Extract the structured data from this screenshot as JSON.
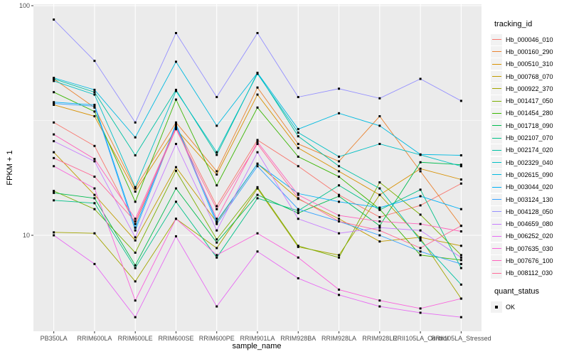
{
  "figure": {
    "y_axis_title": "FPKM + 1",
    "x_axis_title": "sample_name",
    "y_tick_labels": [
      "100",
      "10"
    ]
  },
  "legend": {
    "tracking_title": "tracking_id",
    "quant_title": "quant_status",
    "quant_items": [
      {
        "label": "OK",
        "marker": "black-square"
      }
    ]
  },
  "colors": {
    "panel_bg": "#EBEBEB",
    "grid": "#FFFFFF",
    "tick_text": "#4D4D4D",
    "text": "#000000",
    "point": "#000000",
    "legend_key_bg": "#F2F2F2"
  },
  "chart_data": {
    "type": "line",
    "title": "",
    "xlabel": "sample_name",
    "ylabel": "FPKM + 1",
    "y_scale": "log10",
    "ylim": [
      3.8,
      102
    ],
    "y_major_ticks": [
      100,
      10
    ],
    "y_minor_gridlines": [
      31.62
    ],
    "grid": true,
    "legend_position": "right",
    "point_marker": "black-square",
    "categories": [
      "PB350LA",
      "RRIM600LA",
      "RRIM600LE",
      "RRIM600SE",
      "RRIM600PE",
      "RRIM901LA",
      "RRIM928BA",
      "RRIM928LA",
      "RRIM928LE",
      "RRII105LA_Control",
      "RRII105LA_Stressed"
    ],
    "series": [
      {
        "name": "Hb_000046_010",
        "color": "#F8766D",
        "values": [
          31,
          24.5,
          11.2,
          30,
          13.4,
          26,
          20,
          15,
          12,
          13.5,
          16.8
        ]
      },
      {
        "name": "Hb_000160_290",
        "color": "#EA8331",
        "values": [
          48,
          36,
          16,
          31,
          19,
          44,
          25,
          21,
          33,
          19,
          11
        ]
      },
      {
        "name": "Hb_000510_310",
        "color": "#D89000",
        "values": [
          37,
          33,
          15.5,
          29,
          18.4,
          41,
          24,
          19,
          15,
          19.5,
          17.5
        ]
      },
      {
        "name": "Hb_000768_070",
        "color": "#C09B00",
        "values": [
          23,
          15,
          9.5,
          19.8,
          11.4,
          20.5,
          14.4,
          11.8,
          9.4,
          9.8,
          9
        ]
      },
      {
        "name": "Hb_000922_370",
        "color": "#A3A500",
        "values": [
          10.3,
          10.2,
          6.3,
          11.8,
          8.8,
          16,
          8.9,
          8.2,
          15,
          9.7,
          5.3
        ]
      },
      {
        "name": "Hb_001417_050",
        "color": "#7CAE00",
        "values": [
          15.6,
          13,
          8.4,
          19.1,
          9.6,
          16.2,
          9,
          8,
          17,
          12.3,
          8.2
        ]
      },
      {
        "name": "Hb_001454_280",
        "color": "#39B600",
        "values": [
          42,
          34.6,
          14,
          39,
          16.5,
          36,
          22,
          18,
          13,
          8.2,
          7.8
        ]
      },
      {
        "name": "Hb_001718_090",
        "color": "#00BB4E",
        "values": [
          15.3,
          14.5,
          7.4,
          16,
          9.3,
          15,
          12.5,
          14.8,
          11,
          20.8,
          20.3
        ]
      },
      {
        "name": "Hb_002107_070",
        "color": "#00C087",
        "values": [
          14.2,
          13.8,
          7.2,
          14,
          8,
          14.5,
          12.8,
          16.5,
          12.9,
          15.8,
          7.2
        ]
      },
      {
        "name": "Hb_002174_020",
        "color": "#00C1A3",
        "values": [
          48,
          42,
          22.3,
          43,
          22.4,
          51,
          27,
          20,
          16,
          9.5,
          6.1
        ]
      },
      {
        "name": "Hb_002329_040",
        "color": "#00BFC4",
        "values": [
          47,
          41,
          16.2,
          42.5,
          23,
          50.5,
          28,
          22,
          25,
          22.4,
          20
        ]
      },
      {
        "name": "Hb_002615_090",
        "color": "#00BAE0",
        "values": [
          48.5,
          43,
          26.7,
          57,
          30,
          51,
          29,
          34,
          30,
          22.5,
          22.3
        ]
      },
      {
        "name": "Hb_003044_020",
        "color": "#00B0F6",
        "values": [
          38,
          37,
          10.8,
          30.5,
          11.5,
          20.5,
          15.2,
          14,
          13.2,
          14.8,
          13
        ]
      },
      {
        "name": "Hb_003124_130",
        "color": "#35A2FF",
        "values": [
          37.5,
          36.5,
          10.5,
          30,
          11.2,
          20,
          13,
          11.5,
          10,
          8.5,
          7.5
        ]
      },
      {
        "name": "Hb_004128_050",
        "color": "#9590FF",
        "values": [
          87,
          57.5,
          31,
          76,
          40,
          76,
          40,
          43.5,
          39.5,
          48,
          38.5
        ]
      },
      {
        "name": "Hb_004659_080",
        "color": "#C77CFF",
        "values": [
          25.7,
          21,
          9.8,
          25,
          10.5,
          23,
          11.8,
          10.2,
          10.8,
          10.5,
          8
        ]
      },
      {
        "name": "Hb_006252_020",
        "color": "#E76BF3",
        "values": [
          10,
          7.5,
          4.4,
          9.9,
          4.9,
          8.5,
          6.5,
          5.5,
          4.9,
          4.6,
          4.4
        ]
      },
      {
        "name": "Hb_007635_030",
        "color": "#FA62DB",
        "values": [
          20,
          16,
          5.2,
          11.8,
          8.2,
          10.2,
          8,
          5.8,
          5.2,
          4.8,
          5.3
        ]
      },
      {
        "name": "Hb_007676_100",
        "color": "#FF62BC",
        "values": [
          27.5,
          21.5,
          11.8,
          29.5,
          11.8,
          25.5,
          15,
          12.2,
          11.5,
          11.2,
          10.4
        ]
      },
      {
        "name": "Hb_008112_030",
        "color": "#FF6A98",
        "values": [
          21.7,
          18,
          11.5,
          29,
          13,
          25,
          14.5,
          11.5,
          10.5,
          8.8,
          11
        ]
      }
    ]
  }
}
